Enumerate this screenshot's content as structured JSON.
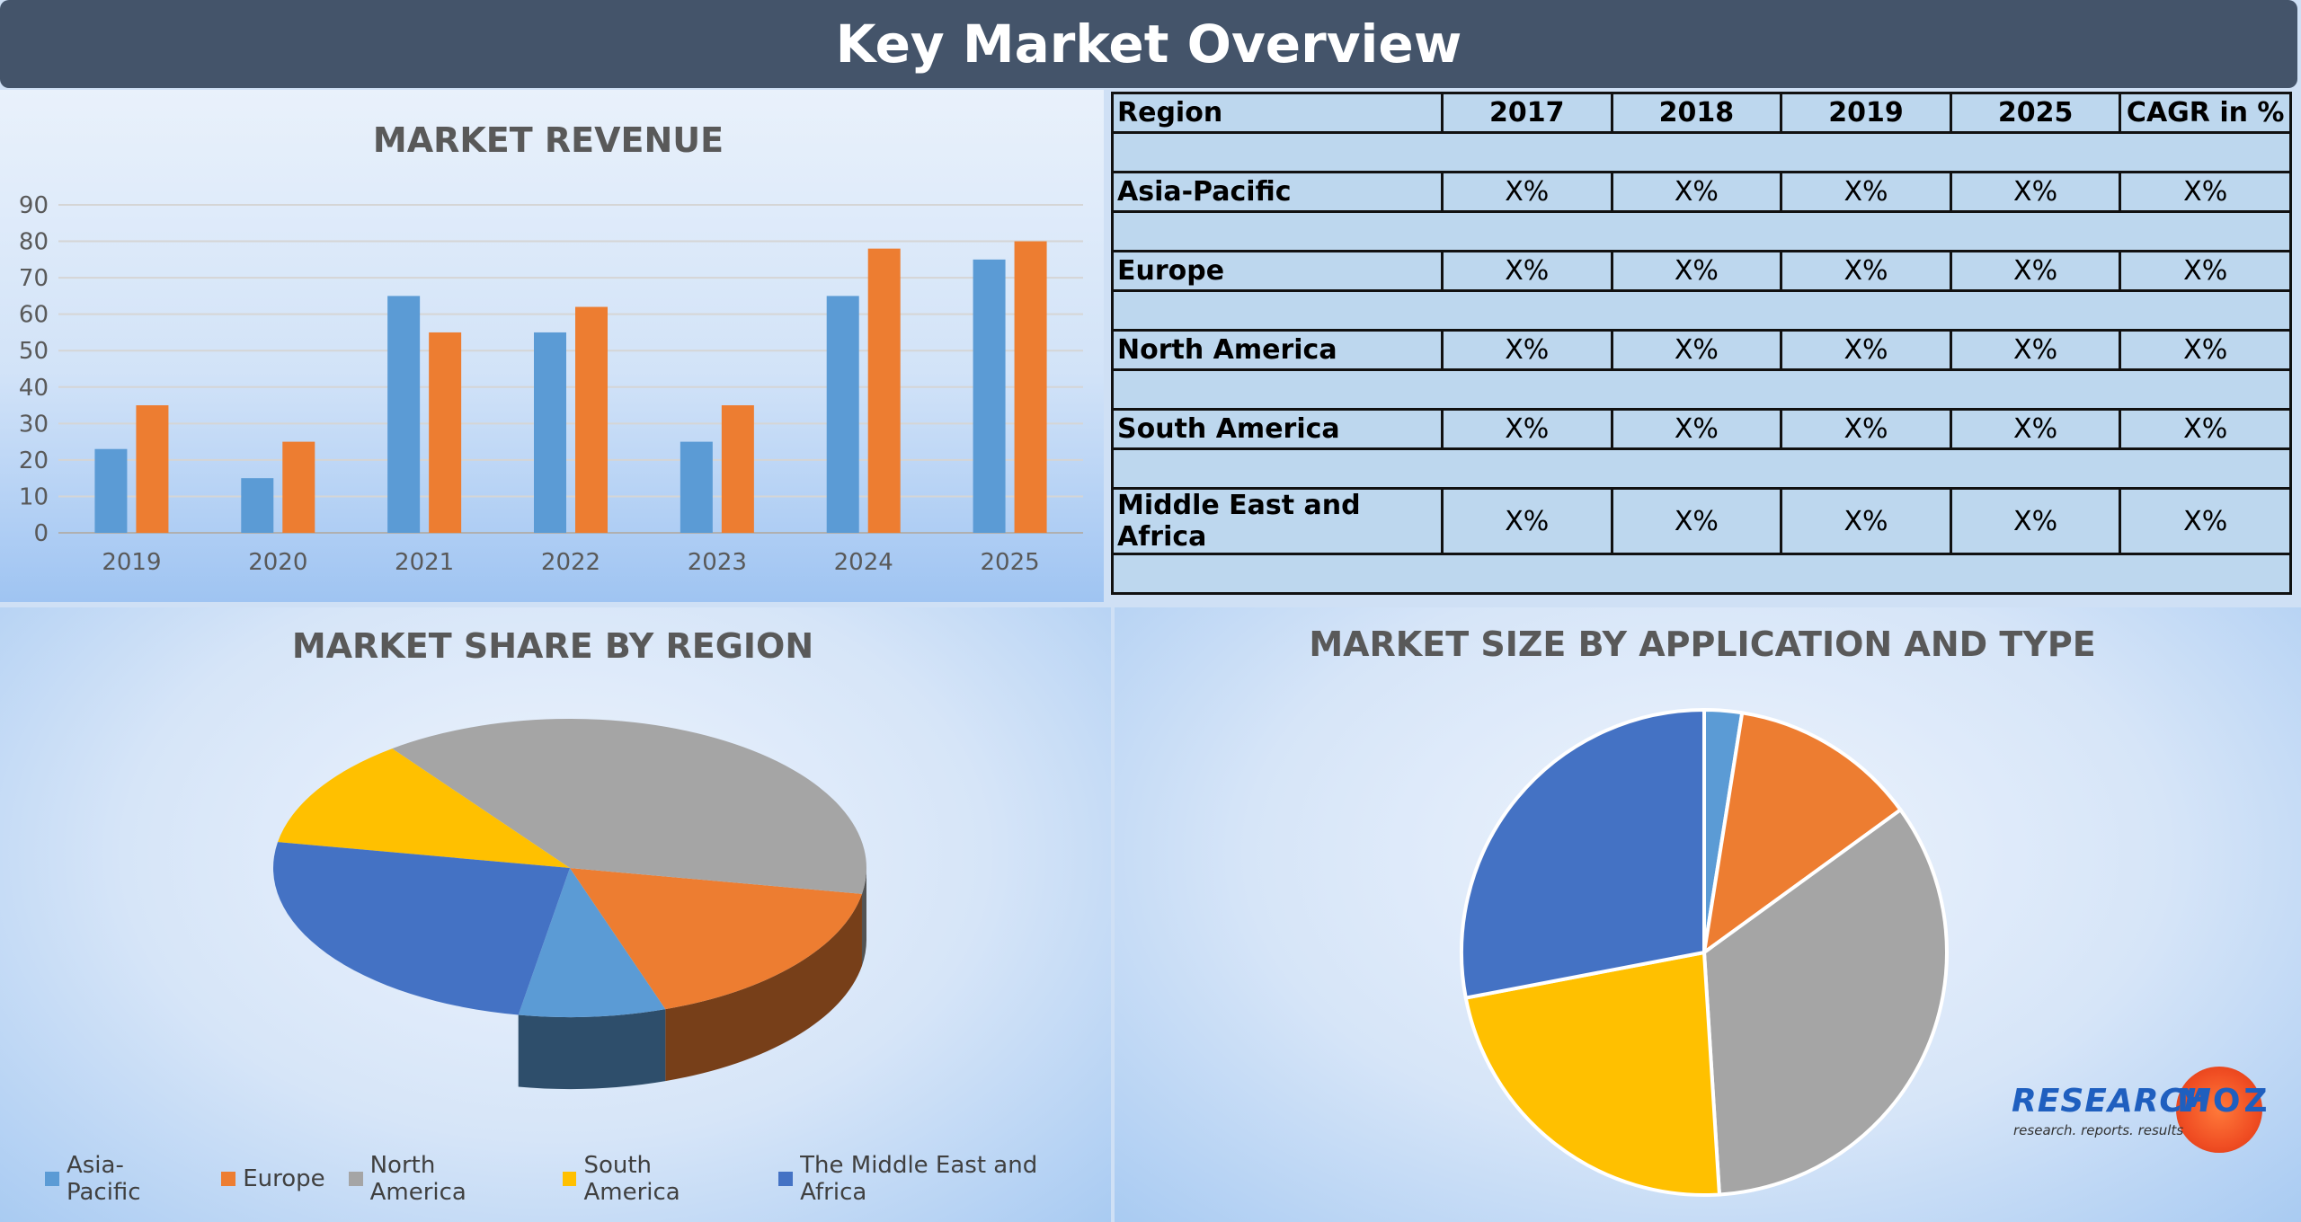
{
  "header": {
    "title": "Key Market Overview"
  },
  "table": {
    "headers": [
      "Region",
      "2017",
      "2018",
      "2019",
      "2025",
      "CAGR in %"
    ],
    "rows": [
      {
        "region": "Asia-Pacific",
        "values": [
          "X%",
          "X%",
          "X%",
          "X%",
          "X%"
        ]
      },
      {
        "region": "Europe",
        "values": [
          "X%",
          "X%",
          "X%",
          "X%",
          "X%"
        ]
      },
      {
        "region": "North America",
        "values": [
          "X%",
          "X%",
          "X%",
          "X%",
          "X%"
        ]
      },
      {
        "region": "South America",
        "values": [
          "X%",
          "X%",
          "X%",
          "X%",
          "X%"
        ]
      },
      {
        "region": "Middle East and Africa",
        "values": [
          "X%",
          "X%",
          "X%",
          "X%",
          "X%"
        ]
      }
    ]
  },
  "chart_data": [
    {
      "type": "bar",
      "title": "MARKET REVENUE",
      "categories": [
        "2019",
        "2020",
        "2021",
        "2022",
        "2023",
        "2024",
        "2025"
      ],
      "series": [
        {
          "values": [
            23,
            15,
            65,
            55,
            25,
            65,
            75
          ],
          "color": "#5b9bd5"
        },
        {
          "values": [
            35,
            25,
            55,
            62,
            35,
            78,
            80
          ],
          "color": "#ed7d31"
        }
      ],
      "ylim": [
        0,
        90
      ],
      "yticks": [
        0,
        10,
        20,
        30,
        40,
        50,
        60,
        70,
        80,
        90
      ],
      "grid": true
    },
    {
      "type": "pie",
      "title": "MARKET SHARE BY REGION",
      "style": "3d",
      "labels": [
        "Asia-Pacific",
        "Europe",
        "North America",
        "South America",
        "The Middle East and Africa"
      ],
      "values": [
        8,
        17,
        38,
        12,
        25
      ],
      "colors": [
        "#5b9bd5",
        "#ed7d31",
        "#a5a5a5",
        "#ffc000",
        "#4472c4"
      ],
      "legend": "bottom"
    },
    {
      "type": "pie",
      "title": "MARKET SIZE BY APPLICATION AND TYPE",
      "values": [
        2.5,
        12.5,
        34,
        23,
        28
      ],
      "colors": [
        "#5b9bd5",
        "#ed7d31",
        "#a5a5a5",
        "#ffc000",
        "#4472c4"
      ]
    }
  ],
  "logo": {
    "word1": "RESEARCH",
    "word2": "MOZ",
    "tagline": "research. reports. results"
  }
}
